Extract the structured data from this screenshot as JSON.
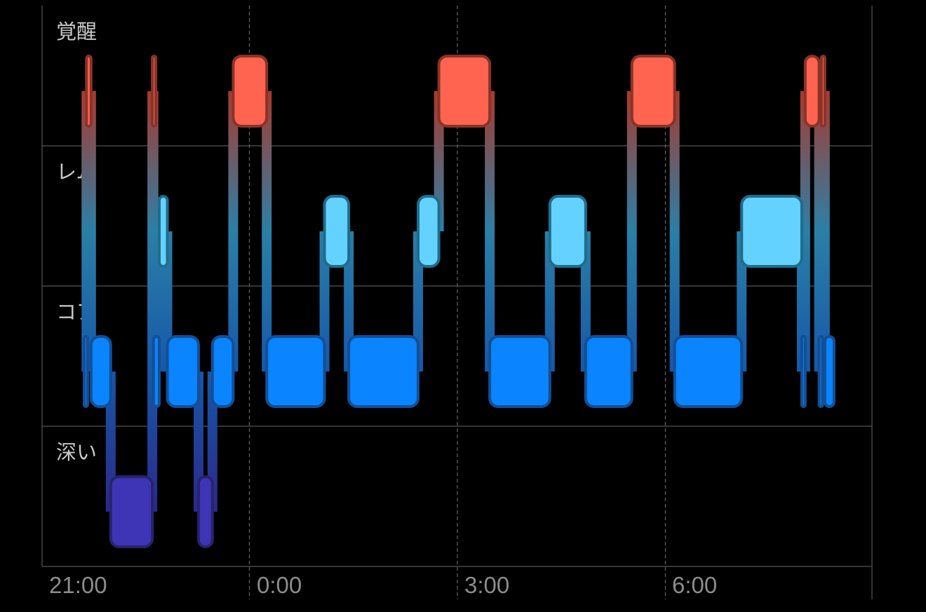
{
  "chart_data": {
    "type": "sleep-stages-timeline",
    "title": "",
    "x_axis": {
      "start": "21:00",
      "end": "09:00",
      "ticks": [
        "21:00",
        "0:00",
        "3:00",
        "6:00"
      ]
    },
    "stages": [
      {
        "key": "awake",
        "label": "覚醒",
        "color": "#ff6450"
      },
      {
        "key": "rem",
        "label": "レム",
        "color": "#64d2ff"
      },
      {
        "key": "core",
        "label": "コア",
        "color": "#0a84ff"
      },
      {
        "key": "deep",
        "label": "深い",
        "color": "#3d35b5"
      }
    ],
    "segments": [
      {
        "stage": "core",
        "start": "21:37",
        "end": "21:39"
      },
      {
        "stage": "awake",
        "start": "21:39",
        "end": "21:43"
      },
      {
        "stage": "core",
        "start": "21:43",
        "end": "22:00"
      },
      {
        "stage": "deep",
        "start": "22:00",
        "end": "22:36"
      },
      {
        "stage": "awake",
        "start": "22:36",
        "end": "22:37"
      },
      {
        "stage": "core",
        "start": "22:37",
        "end": "22:42"
      },
      {
        "stage": "rem",
        "start": "22:42",
        "end": "22:49"
      },
      {
        "stage": "core",
        "start": "22:49",
        "end": "23:16"
      },
      {
        "stage": "deep",
        "start": "23:16",
        "end": "23:28"
      },
      {
        "stage": "core",
        "start": "23:28",
        "end": "23:46"
      },
      {
        "stage": "awake",
        "start": "23:46",
        "end": "00:15"
      },
      {
        "stage": "core",
        "start": "00:15",
        "end": "01:05"
      },
      {
        "stage": "rem",
        "start": "01:05",
        "end": "01:26"
      },
      {
        "stage": "core",
        "start": "01:26",
        "end": "02:26"
      },
      {
        "stage": "rem",
        "start": "02:26",
        "end": "02:44"
      },
      {
        "stage": "awake",
        "start": "02:44",
        "end": "03:28"
      },
      {
        "stage": "core",
        "start": "03:28",
        "end": "04:20"
      },
      {
        "stage": "rem",
        "start": "04:20",
        "end": "04:51"
      },
      {
        "stage": "core",
        "start": "04:51",
        "end": "05:31"
      },
      {
        "stage": "awake",
        "start": "05:31",
        "end": "06:08"
      },
      {
        "stage": "core",
        "start": "06:08",
        "end": "07:06"
      },
      {
        "stage": "rem",
        "start": "07:06",
        "end": "07:58"
      },
      {
        "stage": "core",
        "start": "07:58",
        "end": "08:01"
      },
      {
        "stage": "awake",
        "start": "08:01",
        "end": "08:13"
      },
      {
        "stage": "core",
        "start": "08:13",
        "end": "08:15"
      },
      {
        "stage": "awake",
        "start": "08:15",
        "end": "08:18"
      },
      {
        "stage": "core",
        "start": "08:18",
        "end": "08:26"
      }
    ],
    "grid": true
  }
}
